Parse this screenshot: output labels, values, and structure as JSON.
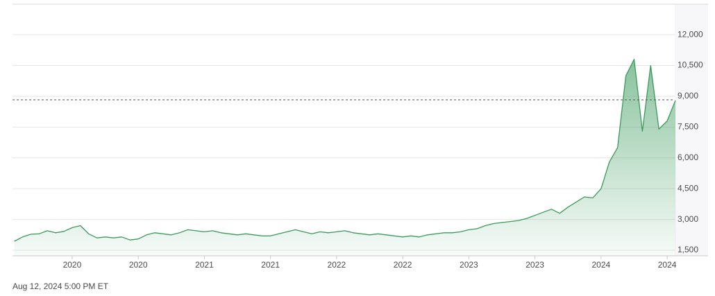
{
  "chart_data": {
    "type": "area",
    "timestamp": "Aug 12, 2024 5:00 PM ET",
    "color": "#3a9a5b",
    "grid": true,
    "reference_line": 8830,
    "categories": [
      null,
      null,
      null,
      null,
      null,
      null,
      null,
      "2020",
      null,
      null,
      null,
      null,
      null,
      null,
      null,
      "2020",
      null,
      null,
      null,
      null,
      null,
      null,
      null,
      "2021",
      null,
      null,
      null,
      null,
      null,
      null,
      null,
      "2021",
      null,
      null,
      null,
      null,
      null,
      null,
      null,
      "2022",
      null,
      null,
      null,
      null,
      null,
      null,
      null,
      "2022",
      null,
      null,
      null,
      null,
      null,
      null,
      null,
      "2023",
      null,
      null,
      null,
      null,
      null,
      null,
      null,
      "2023",
      null,
      null,
      null,
      null,
      null,
      null,
      null,
      "2024",
      null,
      null,
      null,
      null,
      null,
      null,
      null,
      "2024",
      null
    ],
    "values": [
      1940,
      2150,
      2280,
      2300,
      2450,
      2350,
      2420,
      2600,
      2700,
      2300,
      2100,
      2150,
      2100,
      2150,
      2000,
      2050,
      2250,
      2350,
      2300,
      2250,
      2350,
      2500,
      2450,
      2400,
      2450,
      2350,
      2300,
      2250,
      2300,
      2250,
      2200,
      2200,
      2300,
      2400,
      2500,
      2400,
      2300,
      2400,
      2350,
      2400,
      2450,
      2350,
      2300,
      2250,
      2300,
      2250,
      2200,
      2150,
      2200,
      2150,
      2250,
      2300,
      2350,
      2350,
      2400,
      2500,
      2550,
      2700,
      2800,
      2850,
      2900,
      2950,
      3050,
      3200,
      3350,
      3500,
      3300,
      3600,
      3850,
      4100,
      4050,
      4500,
      5800,
      6500,
      10000,
      10800,
      7300,
      10500,
      7400,
      7800,
      8800
    ],
    "ylim": [
      1230,
      13490
    ],
    "yticks": [
      {
        "value": 1500,
        "label": "1,500"
      },
      {
        "value": 3000,
        "label": "3,000"
      },
      {
        "value": 4500,
        "label": "4,500"
      },
      {
        "value": 6000,
        "label": "6,000"
      },
      {
        "value": 7500,
        "label": "7,500"
      },
      {
        "value": 9000,
        "label": "9,000"
      },
      {
        "value": 10500,
        "label": "10,500"
      },
      {
        "value": 12000,
        "label": "12,000"
      }
    ]
  }
}
